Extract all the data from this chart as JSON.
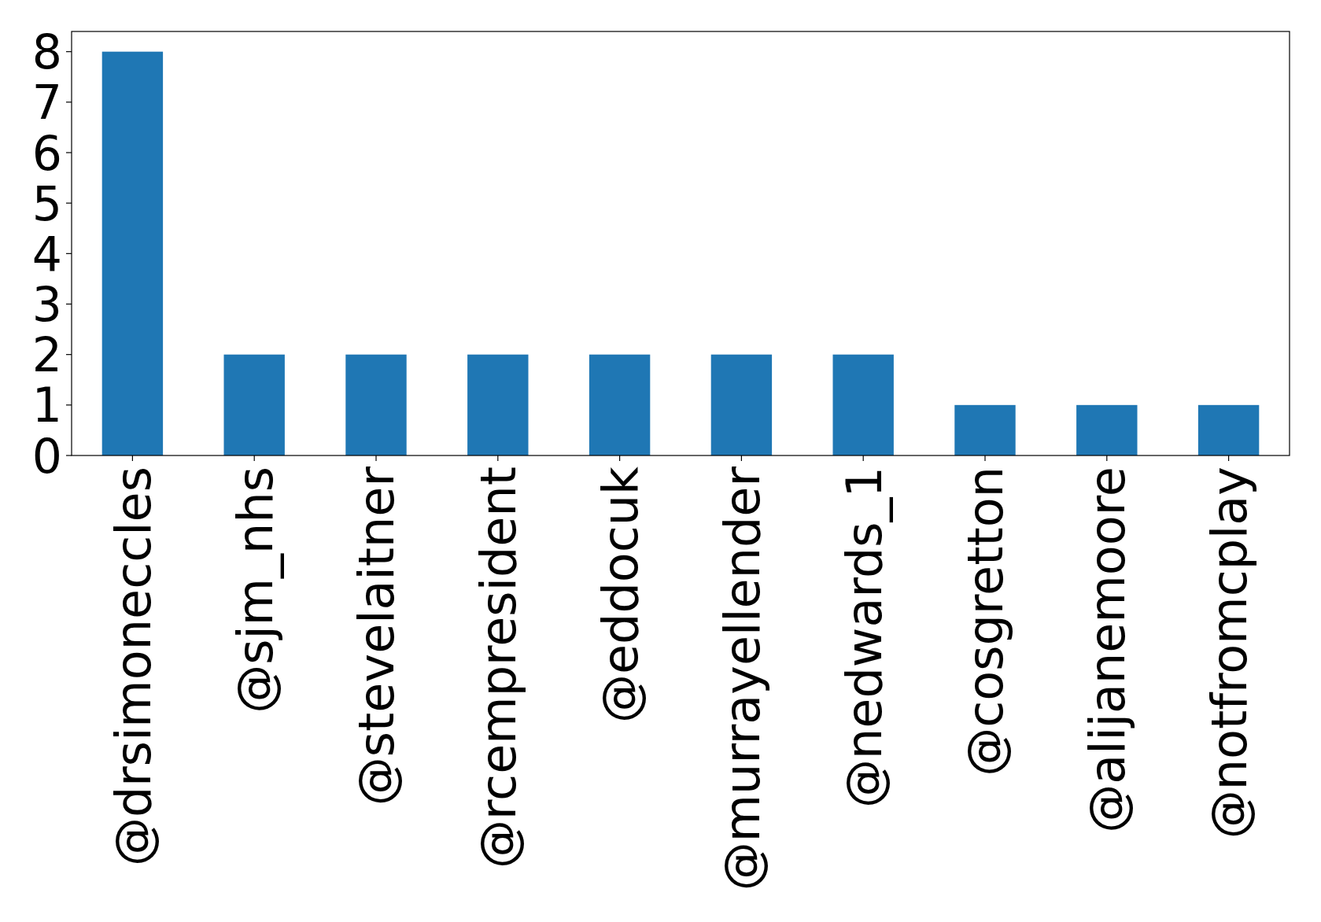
{
  "chart_data": {
    "type": "bar",
    "categories": [
      "@drsimoneccles",
      "@sjm_nhs",
      "@stevelaitner",
      "@rcempresident",
      "@eddocuk",
      "@murrayellender",
      "@nedwards_1",
      "@cosgretton",
      "@alijanemoore",
      "@notfromcplay"
    ],
    "values": [
      8,
      2,
      2,
      2,
      2,
      2,
      2,
      1,
      1,
      1
    ],
    "color": "#1f77b4",
    "ylim": [
      0,
      8.4
    ],
    "yticks": [
      0,
      1,
      2,
      3,
      4,
      5,
      6,
      7,
      8
    ],
    "grid": false
  }
}
